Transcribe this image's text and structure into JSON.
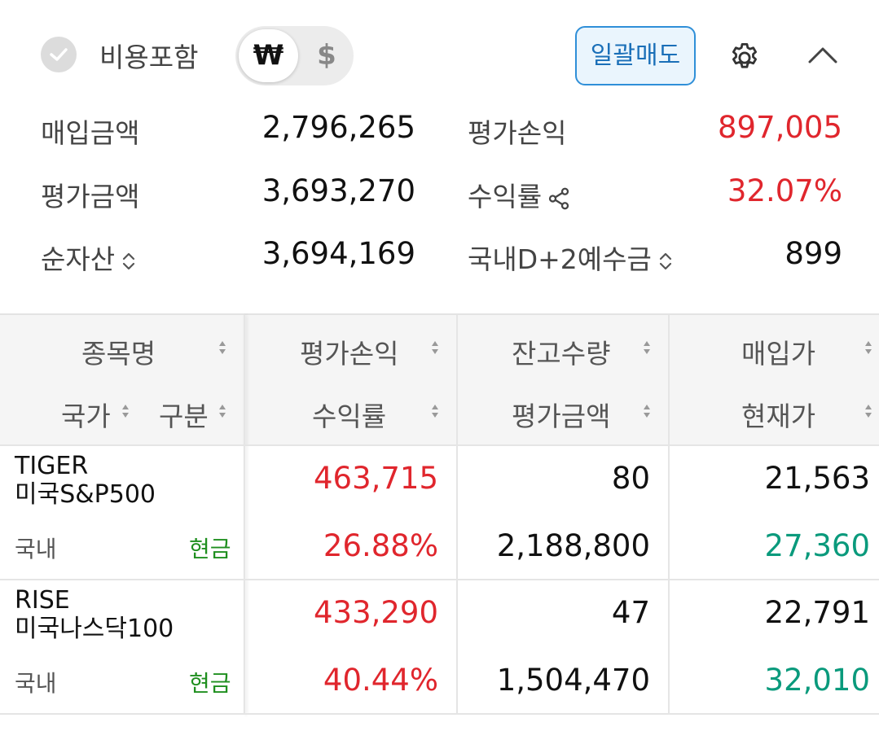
{
  "toolbar": {
    "include_cost_label": "비용포함",
    "currency_won": "₩",
    "currency_usd": "$",
    "sell_all_label": "일괄매도",
    "icons": [
      "check-icon",
      "gear-icon",
      "chevron-up-icon"
    ]
  },
  "summary": {
    "purchase_amount_label": "매입금액",
    "purchase_amount_value": "2,796,265",
    "eval_profit_label": "평가손익",
    "eval_profit_value": "897,005",
    "eval_amount_label": "평가금액",
    "eval_amount_value": "3,693,270",
    "return_rate_label": "수익률",
    "return_rate_value": "32.07%",
    "net_assets_label": "순자산",
    "net_assets_value": "3,694,169",
    "deposit_label": "국내D+2예수금",
    "deposit_value": "899"
  },
  "table": {
    "headers": {
      "name": "종목명",
      "country": "국가",
      "category": "구분",
      "eval_profit": "평가손익",
      "return_rate": "수익률",
      "quantity": "잔고수량",
      "eval_amount": "평가금액",
      "purchase_price": "매입가",
      "current_price": "현재가"
    },
    "rows": [
      {
        "name_line1": "TIGER",
        "name_line2": "미국S&P500",
        "country": "국내",
        "category": "현금",
        "eval_profit": "463,715",
        "return_rate": "26.88%",
        "quantity": "80",
        "eval_amount": "2,188,800",
        "purchase_price": "21,563",
        "current_price": "27,360"
      },
      {
        "name_line1": "RISE",
        "name_line2": "미국나스닥100",
        "country": "국내",
        "category": "현금",
        "eval_profit": "433,290",
        "return_rate": "40.44%",
        "quantity": "47",
        "eval_amount": "1,504,470",
        "purchase_price": "22,791",
        "current_price": "32,010"
      }
    ]
  },
  "colors": {
    "profit_red": "#e0262d",
    "category_green": "#1f8f1f",
    "current_price_teal": "#0a9a7c",
    "accent_blue": "#2f8fd8"
  }
}
